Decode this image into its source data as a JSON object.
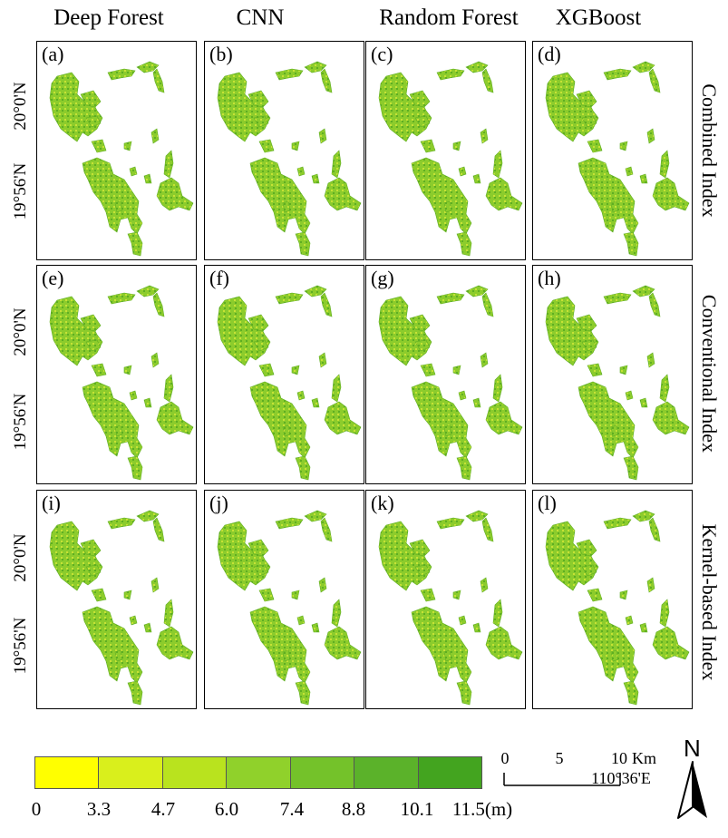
{
  "columns": [
    "Deep Forest",
    "CNN",
    "Random Forest",
    "XGBoost"
  ],
  "rows": [
    "Combined Index",
    "Conventional Index",
    "Kernel-based Index"
  ],
  "panel_labels": [
    "(a)",
    "(b)",
    "(c)",
    "(d)",
    "(e)",
    "(f)",
    "(g)",
    "(h)",
    "(i)",
    "(j)",
    "(k)",
    "(l)"
  ],
  "lat_labels": [
    "20°0'N",
    "19°56'N"
  ],
  "lon_label": "110°36'E",
  "legend": {
    "ticks": [
      "0",
      "3.3",
      "4.7",
      "6.0",
      "7.4",
      "8.8",
      "10.1",
      "11.5(m)"
    ],
    "colors": [
      "#ffff00",
      "#d9ef1c",
      "#b9e31e",
      "#90d12b",
      "#74c22a",
      "#5bb22a",
      "#43a41f"
    ]
  },
  "scale_bar": {
    "labels": [
      "0",
      "5",
      "10"
    ],
    "unit": "Km"
  },
  "north_arrow": {
    "label": "N",
    "icon": "north-arrow-icon"
  },
  "map_colors": {
    "base": "#8ccc2c",
    "light": "#c6e236",
    "dark": "#5fae22"
  }
}
